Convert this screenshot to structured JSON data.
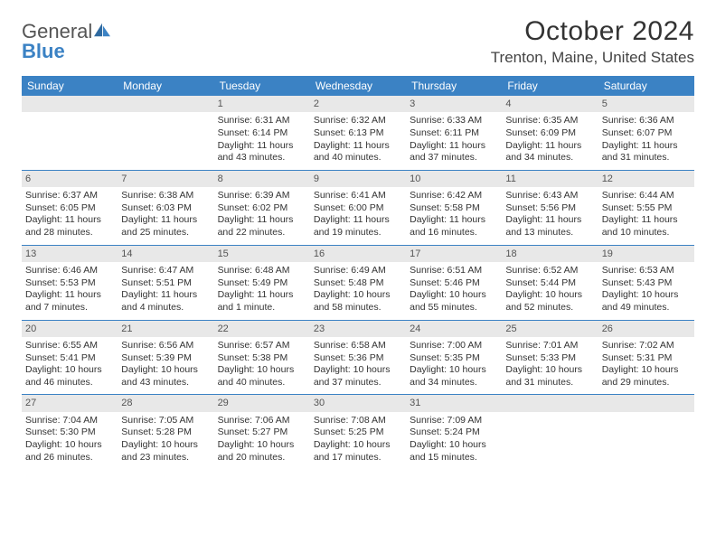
{
  "logo": {
    "text1": "General",
    "text2": "Blue"
  },
  "title": "October 2024",
  "location": "Trenton, Maine, United States",
  "weekdays": [
    "Sunday",
    "Monday",
    "Tuesday",
    "Wednesday",
    "Thursday",
    "Friday",
    "Saturday"
  ],
  "colors": {
    "header_bg": "#3b82c4",
    "day_num_bg": "#e8e8e8",
    "rule": "#3b82c4",
    "text": "#333333",
    "logo_blue": "#3b82c4"
  },
  "weeks": [
    [
      {
        "n": "",
        "sunrise": "",
        "sunset": "",
        "daylight": ""
      },
      {
        "n": "",
        "sunrise": "",
        "sunset": "",
        "daylight": ""
      },
      {
        "n": "1",
        "sunrise": "Sunrise: 6:31 AM",
        "sunset": "Sunset: 6:14 PM",
        "daylight": "Daylight: 11 hours and 43 minutes."
      },
      {
        "n": "2",
        "sunrise": "Sunrise: 6:32 AM",
        "sunset": "Sunset: 6:13 PM",
        "daylight": "Daylight: 11 hours and 40 minutes."
      },
      {
        "n": "3",
        "sunrise": "Sunrise: 6:33 AM",
        "sunset": "Sunset: 6:11 PM",
        "daylight": "Daylight: 11 hours and 37 minutes."
      },
      {
        "n": "4",
        "sunrise": "Sunrise: 6:35 AM",
        "sunset": "Sunset: 6:09 PM",
        "daylight": "Daylight: 11 hours and 34 minutes."
      },
      {
        "n": "5",
        "sunrise": "Sunrise: 6:36 AM",
        "sunset": "Sunset: 6:07 PM",
        "daylight": "Daylight: 11 hours and 31 minutes."
      }
    ],
    [
      {
        "n": "6",
        "sunrise": "Sunrise: 6:37 AM",
        "sunset": "Sunset: 6:05 PM",
        "daylight": "Daylight: 11 hours and 28 minutes."
      },
      {
        "n": "7",
        "sunrise": "Sunrise: 6:38 AM",
        "sunset": "Sunset: 6:03 PM",
        "daylight": "Daylight: 11 hours and 25 minutes."
      },
      {
        "n": "8",
        "sunrise": "Sunrise: 6:39 AM",
        "sunset": "Sunset: 6:02 PM",
        "daylight": "Daylight: 11 hours and 22 minutes."
      },
      {
        "n": "9",
        "sunrise": "Sunrise: 6:41 AM",
        "sunset": "Sunset: 6:00 PM",
        "daylight": "Daylight: 11 hours and 19 minutes."
      },
      {
        "n": "10",
        "sunrise": "Sunrise: 6:42 AM",
        "sunset": "Sunset: 5:58 PM",
        "daylight": "Daylight: 11 hours and 16 minutes."
      },
      {
        "n": "11",
        "sunrise": "Sunrise: 6:43 AM",
        "sunset": "Sunset: 5:56 PM",
        "daylight": "Daylight: 11 hours and 13 minutes."
      },
      {
        "n": "12",
        "sunrise": "Sunrise: 6:44 AM",
        "sunset": "Sunset: 5:55 PM",
        "daylight": "Daylight: 11 hours and 10 minutes."
      }
    ],
    [
      {
        "n": "13",
        "sunrise": "Sunrise: 6:46 AM",
        "sunset": "Sunset: 5:53 PM",
        "daylight": "Daylight: 11 hours and 7 minutes."
      },
      {
        "n": "14",
        "sunrise": "Sunrise: 6:47 AM",
        "sunset": "Sunset: 5:51 PM",
        "daylight": "Daylight: 11 hours and 4 minutes."
      },
      {
        "n": "15",
        "sunrise": "Sunrise: 6:48 AM",
        "sunset": "Sunset: 5:49 PM",
        "daylight": "Daylight: 11 hours and 1 minute."
      },
      {
        "n": "16",
        "sunrise": "Sunrise: 6:49 AM",
        "sunset": "Sunset: 5:48 PM",
        "daylight": "Daylight: 10 hours and 58 minutes."
      },
      {
        "n": "17",
        "sunrise": "Sunrise: 6:51 AM",
        "sunset": "Sunset: 5:46 PM",
        "daylight": "Daylight: 10 hours and 55 minutes."
      },
      {
        "n": "18",
        "sunrise": "Sunrise: 6:52 AM",
        "sunset": "Sunset: 5:44 PM",
        "daylight": "Daylight: 10 hours and 52 minutes."
      },
      {
        "n": "19",
        "sunrise": "Sunrise: 6:53 AM",
        "sunset": "Sunset: 5:43 PM",
        "daylight": "Daylight: 10 hours and 49 minutes."
      }
    ],
    [
      {
        "n": "20",
        "sunrise": "Sunrise: 6:55 AM",
        "sunset": "Sunset: 5:41 PM",
        "daylight": "Daylight: 10 hours and 46 minutes."
      },
      {
        "n": "21",
        "sunrise": "Sunrise: 6:56 AM",
        "sunset": "Sunset: 5:39 PM",
        "daylight": "Daylight: 10 hours and 43 minutes."
      },
      {
        "n": "22",
        "sunrise": "Sunrise: 6:57 AM",
        "sunset": "Sunset: 5:38 PM",
        "daylight": "Daylight: 10 hours and 40 minutes."
      },
      {
        "n": "23",
        "sunrise": "Sunrise: 6:58 AM",
        "sunset": "Sunset: 5:36 PM",
        "daylight": "Daylight: 10 hours and 37 minutes."
      },
      {
        "n": "24",
        "sunrise": "Sunrise: 7:00 AM",
        "sunset": "Sunset: 5:35 PM",
        "daylight": "Daylight: 10 hours and 34 minutes."
      },
      {
        "n": "25",
        "sunrise": "Sunrise: 7:01 AM",
        "sunset": "Sunset: 5:33 PM",
        "daylight": "Daylight: 10 hours and 31 minutes."
      },
      {
        "n": "26",
        "sunrise": "Sunrise: 7:02 AM",
        "sunset": "Sunset: 5:31 PM",
        "daylight": "Daylight: 10 hours and 29 minutes."
      }
    ],
    [
      {
        "n": "27",
        "sunrise": "Sunrise: 7:04 AM",
        "sunset": "Sunset: 5:30 PM",
        "daylight": "Daylight: 10 hours and 26 minutes."
      },
      {
        "n": "28",
        "sunrise": "Sunrise: 7:05 AM",
        "sunset": "Sunset: 5:28 PM",
        "daylight": "Daylight: 10 hours and 23 minutes."
      },
      {
        "n": "29",
        "sunrise": "Sunrise: 7:06 AM",
        "sunset": "Sunset: 5:27 PM",
        "daylight": "Daylight: 10 hours and 20 minutes."
      },
      {
        "n": "30",
        "sunrise": "Sunrise: 7:08 AM",
        "sunset": "Sunset: 5:25 PM",
        "daylight": "Daylight: 10 hours and 17 minutes."
      },
      {
        "n": "31",
        "sunrise": "Sunrise: 7:09 AM",
        "sunset": "Sunset: 5:24 PM",
        "daylight": "Daylight: 10 hours and 15 minutes."
      },
      {
        "n": "",
        "sunrise": "",
        "sunset": "",
        "daylight": ""
      },
      {
        "n": "",
        "sunrise": "",
        "sunset": "",
        "daylight": ""
      }
    ]
  ]
}
